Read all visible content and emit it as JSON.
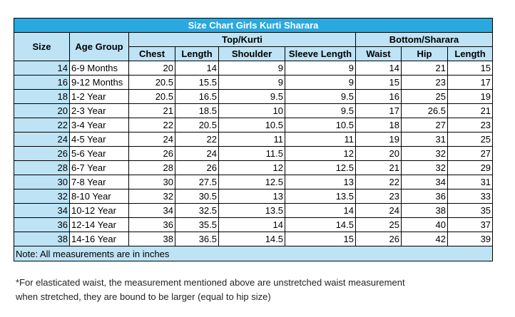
{
  "table": {
    "title": "Size Chart Girls Kurti Sharara",
    "group_headers": [
      "Size",
      "Age Group",
      "Top/Kurti",
      "Bottom/Sharara"
    ],
    "sub_headers": [
      "Chest",
      "Length",
      "Shoulder",
      "Sleeve Length",
      "Waist",
      "Hip",
      "Length"
    ],
    "rows": [
      [
        14,
        "6-9 Months",
        20,
        14,
        9,
        9,
        14,
        21,
        15
      ],
      [
        16,
        "9-12 Months",
        20.5,
        15.5,
        9,
        9,
        15,
        23,
        17
      ],
      [
        18,
        "1-2 Year",
        20.5,
        16.5,
        9.5,
        9.5,
        16,
        25,
        19
      ],
      [
        20,
        "2-3 Year",
        21,
        18.5,
        10,
        9.5,
        17,
        26.5,
        21
      ],
      [
        22,
        "3-4 Year",
        22,
        20.5,
        10.5,
        10.5,
        18,
        27,
        23
      ],
      [
        24,
        "4-5 Year",
        24,
        22,
        11,
        11,
        19,
        31,
        25
      ],
      [
        26,
        "5-6 Year",
        26,
        24,
        11.5,
        12,
        20,
        32,
        27
      ],
      [
        28,
        "6-7 Year",
        28,
        26,
        12,
        12.5,
        21,
        32,
        29
      ],
      [
        30,
        "7-8 Year",
        30,
        27.5,
        12.5,
        13,
        22,
        34,
        31
      ],
      [
        32,
        "8-10 Year",
        32,
        30.5,
        13,
        13.5,
        23,
        36,
        33
      ],
      [
        34,
        "10-12 Year",
        34,
        32.5,
        13.5,
        14,
        24,
        38,
        35
      ],
      [
        36,
        "12-14 Year",
        36,
        35.5,
        14,
        14.5,
        25,
        40,
        37
      ],
      [
        38,
        "14-16 Year",
        38,
        36.5,
        14.5,
        15,
        26,
        42,
        39
      ]
    ],
    "note": "Note: All measurements are in inches"
  },
  "footnote": [
    "*For elasticated waist, the measurement mentioned above are unstretched waist measurement",
    "when stretched, they are bound to be larger (equal to hip size)"
  ]
}
